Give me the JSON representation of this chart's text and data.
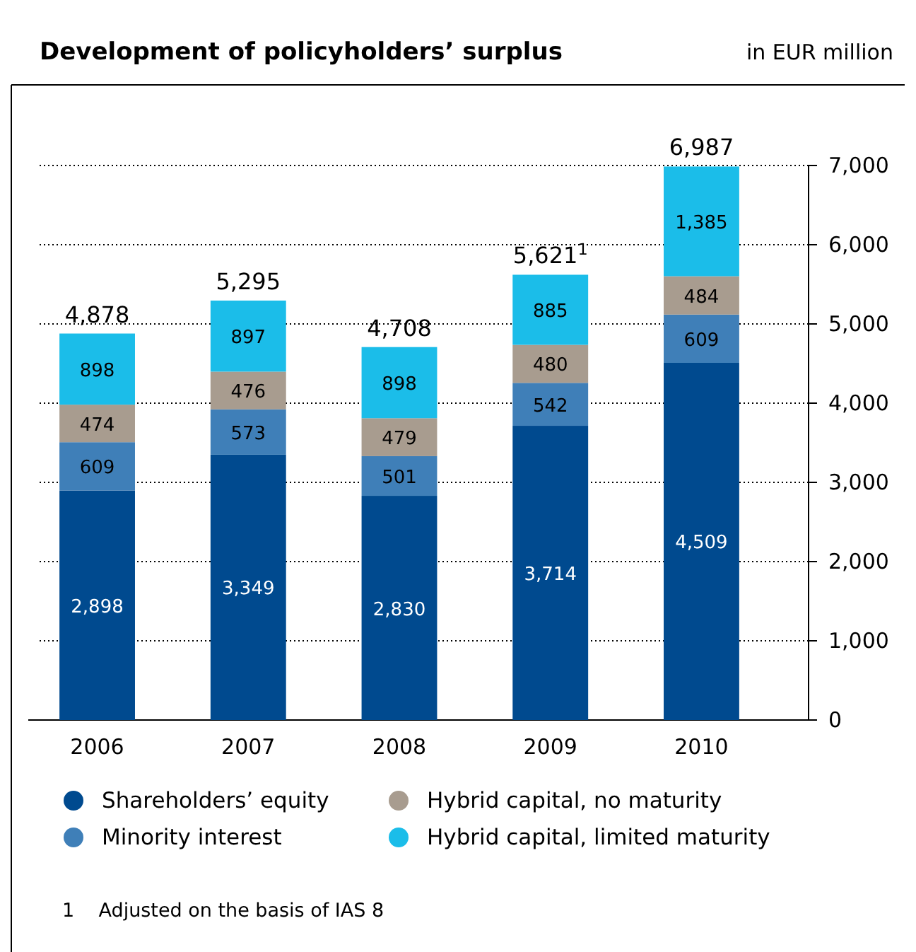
{
  "chart_data": {
    "type": "bar",
    "title": "Development of policyholders’ surplus",
    "subtitle": "in EUR million",
    "categories": [
      "2006",
      "2007",
      "2008",
      "2009",
      "2010"
    ],
    "stacked": true,
    "series": [
      {
        "name": "Shareholders’ equity",
        "color": "#004a8f",
        "values": [
          2898,
          3349,
          2830,
          3714,
          4509
        ],
        "value_labels": [
          "2,898",
          "3,349",
          "2,830",
          "3,714",
          "4,509"
        ]
      },
      {
        "name": "Minority interest",
        "color": "#3f7fb8",
        "values": [
          609,
          573,
          501,
          542,
          609
        ],
        "value_labels": [
          "609",
          "573",
          "501",
          "542",
          "609"
        ]
      },
      {
        "name": "Hybrid capital, no maturity",
        "color": "#a89c8f",
        "values": [
          474,
          476,
          479,
          480,
          484
        ],
        "value_labels": [
          "474",
          "476",
          "479",
          "480",
          "484"
        ]
      },
      {
        "name": "Hybrid capital, limited maturity",
        "color": "#1bbde9",
        "values": [
          898,
          897,
          898,
          885,
          1385
        ],
        "value_labels": [
          "898",
          "897",
          "898",
          "885",
          "1,385"
        ]
      }
    ],
    "totals": [
      "4,878",
      "5,295",
      "4,708",
      "5,621$^{1}$",
      "6,987"
    ],
    "ylim": [
      0,
      7000
    ],
    "yticks": [
      {
        "value": 0,
        "label": "0"
      },
      {
        "value": 1000,
        "label": "1,000"
      },
      {
        "value": 2000,
        "label": "2,000"
      },
      {
        "value": 3000,
        "label": "3,000"
      },
      {
        "value": 4000,
        "label": "4,000"
      },
      {
        "value": 5000,
        "label": "5,000"
      },
      {
        "value": 6000,
        "label": "6,000"
      },
      {
        "value": 7000,
        "label": "7,000"
      }
    ],
    "grid": "y",
    "legend": "bottom",
    "annotations": [
      "1    Adjusted on the basis of IAS 8"
    ]
  }
}
